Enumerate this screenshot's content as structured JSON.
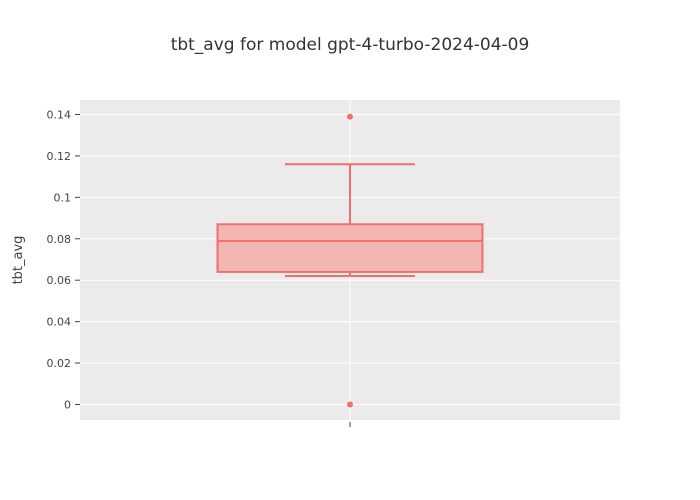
{
  "chart_data": {
    "type": "box",
    "title": "tbt_avg for model gpt-4-turbo-2024-04-09",
    "xlabel": "",
    "ylabel": "tbt_avg",
    "ylim": [
      -0.0075,
      0.147
    ],
    "yticks": [
      0,
      0.02,
      0.04,
      0.06,
      0.08,
      0.1,
      0.12,
      0.14
    ],
    "ytick_labels": [
      "0",
      "0.02",
      "0.04",
      "0.06",
      "0.08",
      "0.1",
      "0.12",
      "0.14"
    ],
    "grid": true,
    "series": [
      {
        "q1": 0.064,
        "median": 0.079,
        "q3": 0.087,
        "whisker_low": 0.062,
        "whisker_high": 0.116,
        "outliers": [
          0.139,
          0.0
        ],
        "color": "#ef6f6a",
        "fill": "#f4b3b1"
      }
    ],
    "plot_background": "#ebebeb",
    "grid_color": "#ffffff"
  }
}
